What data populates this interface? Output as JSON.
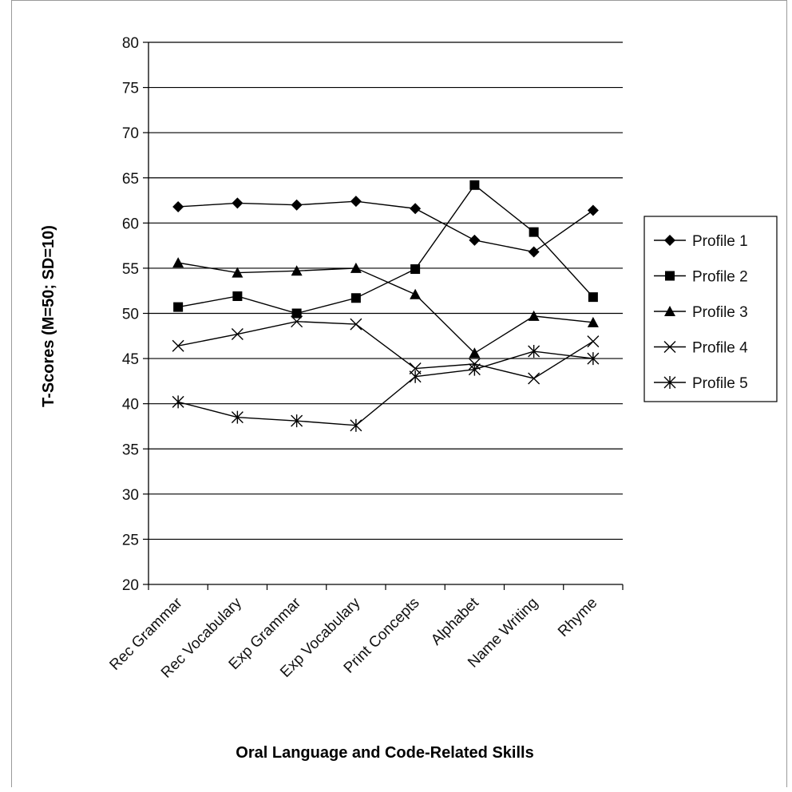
{
  "chart_data": {
    "type": "line",
    "title": "",
    "xlabel": "Oral Language and Code-Related Skills",
    "ylabel": "T-Scores (M=50; SD=10)",
    "ylim": [
      20,
      80
    ],
    "yticks": [
      20,
      25,
      30,
      35,
      40,
      45,
      50,
      55,
      60,
      65,
      70,
      75,
      80
    ],
    "grid": "horizontal",
    "legend_position": "right",
    "categories": [
      "Rec Grammar",
      "Rec Vocabulary",
      "Exp Grammar",
      "Exp Vocabulary",
      "Print Concepts",
      "Alphabet",
      "Name Writing",
      "Rhyme"
    ],
    "series": [
      {
        "name": "Profile 1",
        "marker": "diamond",
        "values": [
          61.8,
          62.2,
          62.0,
          62.4,
          61.6,
          58.1,
          56.8,
          61.4
        ]
      },
      {
        "name": "Profile 2",
        "marker": "square",
        "values": [
          50.7,
          51.9,
          50.0,
          51.7,
          54.9,
          64.2,
          59.0,
          51.8
        ]
      },
      {
        "name": "Profile 3",
        "marker": "triangle",
        "values": [
          55.6,
          54.5,
          54.7,
          55.0,
          52.1,
          45.6,
          49.7,
          49.0
        ]
      },
      {
        "name": "Profile 4",
        "marker": "x",
        "values": [
          46.4,
          47.7,
          49.1,
          48.8,
          43.9,
          44.4,
          42.8,
          46.9
        ]
      },
      {
        "name": "Profile 5",
        "marker": "asterisk",
        "values": [
          40.2,
          38.5,
          38.1,
          37.6,
          43.0,
          43.8,
          45.8,
          45.0
        ]
      }
    ]
  }
}
